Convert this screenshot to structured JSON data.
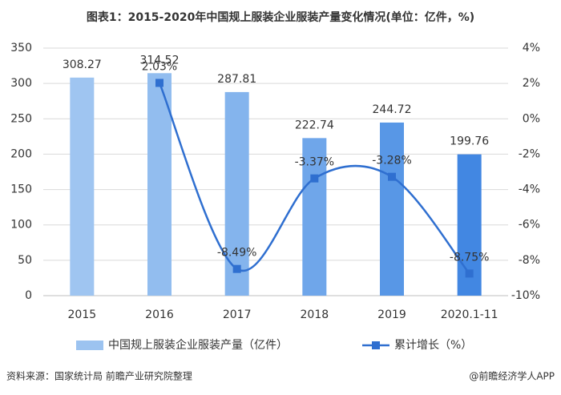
{
  "chart_data": {
    "type": "bar-line",
    "title": "图表1：2015-2020年中国规上服装企业服装产量变化情况(单位：亿件，%)",
    "categories": [
      "2015",
      "2016",
      "2017",
      "2018",
      "2019",
      "2020.1-11"
    ],
    "series": [
      {
        "name": "中国规上服装企业服装产量（亿件）",
        "type": "bar",
        "color": "#9cc3f0",
        "colors": [
          "#9fc5f1",
          "#92bdef",
          "#84b4ed",
          "#6fa6ea",
          "#5897e6",
          "#4287e2"
        ],
        "values": [
          308.27,
          314.52,
          287.81,
          222.74,
          244.72,
          199.76
        ]
      },
      {
        "name": "累计增长（%）",
        "type": "line",
        "axis": "y2",
        "color": "#2f6fd0",
        "values": [
          null,
          2.03,
          -8.49,
          -3.37,
          -3.28,
          -8.75
        ],
        "value_labels": [
          null,
          "2.03%",
          "-8.49%",
          "-3.37%",
          "-3.28%",
          "-8.75%"
        ]
      }
    ],
    "ylim": [
      0,
      350
    ],
    "yticks": [
      0,
      50,
      100,
      150,
      200,
      250,
      300,
      350
    ],
    "y2lim": [
      -10,
      4
    ],
    "y2ticks": [
      {
        "value": -10,
        "label": "-10%"
      },
      {
        "value": -8,
        "label": "-8%"
      },
      {
        "value": -6,
        "label": "-6%"
      },
      {
        "value": -4,
        "label": "-4%"
      },
      {
        "value": -2,
        "label": "-2%"
      },
      {
        "value": 0,
        "label": "0%"
      },
      {
        "value": 2,
        "label": "2%"
      },
      {
        "value": 4,
        "label": "4%"
      }
    ],
    "grid": true,
    "source": "资料来源：国家统计局 前瞻产业研究院整理",
    "credit": "@前瞻经济学人APP"
  }
}
